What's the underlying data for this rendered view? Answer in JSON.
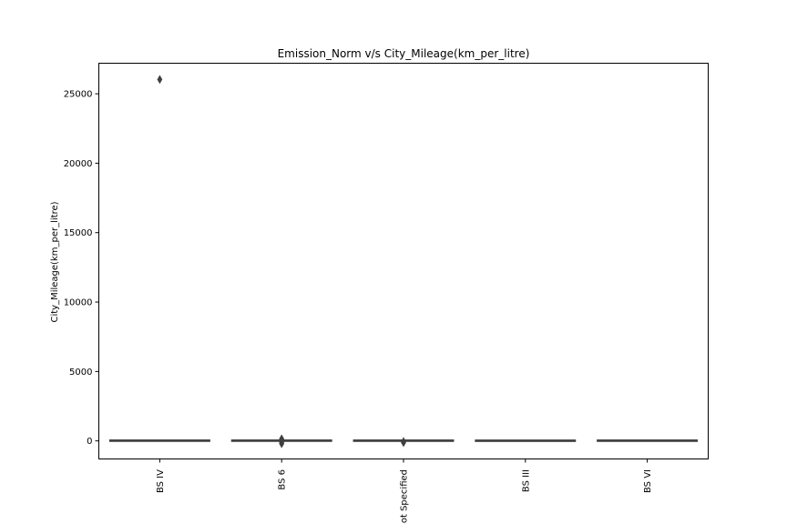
{
  "chart_data": {
    "type": "box",
    "title": "Emission_Norm v/s City_Mileage(km_per_litre)",
    "xlabel": "",
    "ylabel": "City_Mileage(km_per_litre)",
    "ylim": [
      -1300,
      27200
    ],
    "yticks": [
      0,
      5000,
      10000,
      15000,
      20000,
      25000
    ],
    "grid": false,
    "categories": [
      "BS IV",
      "BS 6",
      "Not Specified",
      "BS III",
      "BS VI"
    ],
    "boxes": [
      {
        "category": "BS IV",
        "whisker_low": 7,
        "q1": 13,
        "median": 17,
        "q3": 20,
        "whisker_high": 30,
        "outliers": [
          26032
        ],
        "color": "#3274a1"
      },
      {
        "category": "BS 6",
        "whisker_low": 10,
        "q1": 14,
        "median": 17,
        "q3": 20,
        "whisker_high": 28,
        "outliers": [
          -200,
          -100,
          0,
          150
        ],
        "color": "#e1812c"
      },
      {
        "category": "Not Specified",
        "whisker_low": 8,
        "q1": 13,
        "median": 16,
        "q3": 19,
        "whisker_high": 27,
        "outliers": [
          -120,
          -40
        ],
        "color": "#3a923a"
      },
      {
        "category": "BS III",
        "whisker_low": 8,
        "q1": 10,
        "median": 12,
        "q3": 14,
        "whisker_high": 18,
        "outliers": [],
        "color": "#c03d3e"
      },
      {
        "category": "BS VI",
        "whisker_low": 9,
        "q1": 13,
        "median": 16,
        "q3": 19,
        "whisker_high": 25,
        "outliers": [],
        "color": "#9372b2"
      }
    ]
  }
}
